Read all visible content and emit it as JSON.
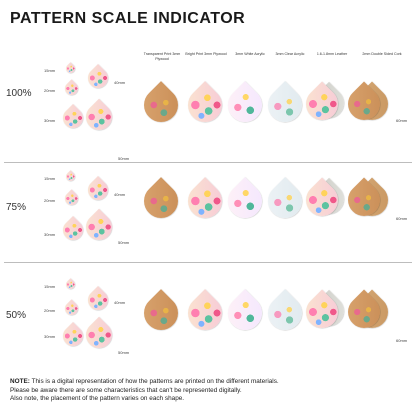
{
  "title": "PATTERN SCALE INDICATOR",
  "materials": [
    "Transparent Print 3mm Plywood",
    "Bright Print 3mm Plywood",
    "3mm White Acrylic",
    "3mm Clear Acrylic",
    "1.6-1.8mm Leather",
    "2mm Double Sided Cork"
  ],
  "rows": [
    {
      "percent": "100%",
      "sizes": [
        "15mm",
        "20mm",
        "30mm",
        "40mm",
        "50mm"
      ],
      "ref": "60mm"
    },
    {
      "percent": "75%",
      "sizes": [
        "15mm",
        "20mm",
        "30mm",
        "40mm",
        "50mm"
      ],
      "ref": "60mm"
    },
    {
      "percent": "50%",
      "sizes": [
        "15mm",
        "20mm",
        "30mm",
        "40mm",
        "50mm"
      ],
      "ref": "60mm"
    }
  ],
  "note": {
    "label": "NOTE:",
    "line1": "This is a digital representation of how the patterns are printed on the different materials.",
    "line2": "Please be aware there are some characteristics that can't be represented digitally.",
    "line3": "Also note, the placement of the pattern varies on each shape."
  },
  "colors": {
    "accent_pink": "#f0588a",
    "separator": "#bdbdbd"
  }
}
